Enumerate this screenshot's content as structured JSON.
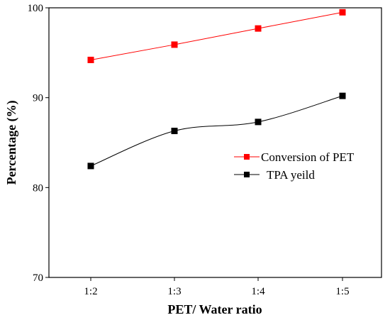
{
  "chart_data": {
    "type": "line",
    "xlabel": "PET/ Water ratio",
    "ylabel": "Percentage (%)",
    "categories": [
      "1:2",
      "1:3",
      "1:4",
      "1:5"
    ],
    "ylim": [
      70,
      100
    ],
    "yticks": [
      70,
      80,
      90,
      100
    ],
    "grid": false,
    "legend_position": "center-right",
    "series": [
      {
        "name": "Conversion of PET",
        "values": [
          94.2,
          95.9,
          97.7,
          99.5
        ],
        "color": "#ff0000",
        "marker": "square",
        "curve": "straight"
      },
      {
        "name": "TPA yeild",
        "values": [
          82.4,
          86.3,
          87.3,
          90.2
        ],
        "color": "#000000",
        "marker": "square",
        "curve": "smooth"
      }
    ]
  }
}
